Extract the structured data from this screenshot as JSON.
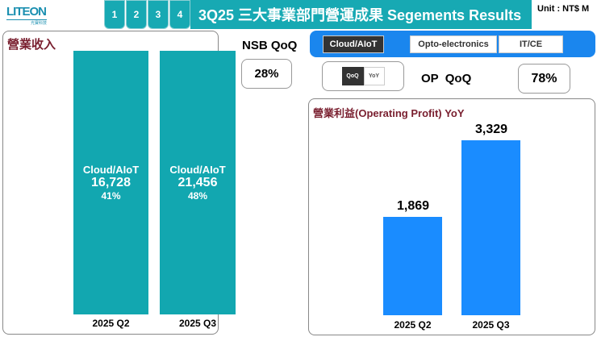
{
  "logo": {
    "text": "LITEON",
    "sub": "光寶科技"
  },
  "nav": {
    "pages": [
      "1",
      "2",
      "3",
      "4"
    ]
  },
  "title": "3Q25 三大事業部門營運成果 Segements Results",
  "unit": "Unit : NT$ M",
  "revenue": {
    "title": "營業收入",
    "bars": [
      {
        "period": "2025 Q2",
        "segment": "Cloud/AIoT",
        "value": "16,728",
        "share": "41%"
      },
      {
        "period": "2025 Q3",
        "segment": "Cloud/AIoT",
        "value": "21,456",
        "share": "48%"
      }
    ]
  },
  "nsb": {
    "label": "NSB QoQ",
    "value": "28%"
  },
  "segments": {
    "tabs": [
      "Cloud/AIoT",
      "Opto-electronics",
      "IT/CE"
    ],
    "active": 0
  },
  "toggle": {
    "options": [
      "QoQ",
      "YoY"
    ],
    "active": 0
  },
  "op": {
    "label": "OP  QoQ",
    "value": "78%"
  },
  "chart_data": {
    "type": "bar",
    "title": "營業利益(Operating Profit) YoY",
    "categories": [
      "2025 Q2",
      "2025 Q3"
    ],
    "values": [
      1869,
      3329
    ],
    "labels": [
      "1,869",
      "3,329"
    ],
    "color": "#1a8cff"
  }
}
